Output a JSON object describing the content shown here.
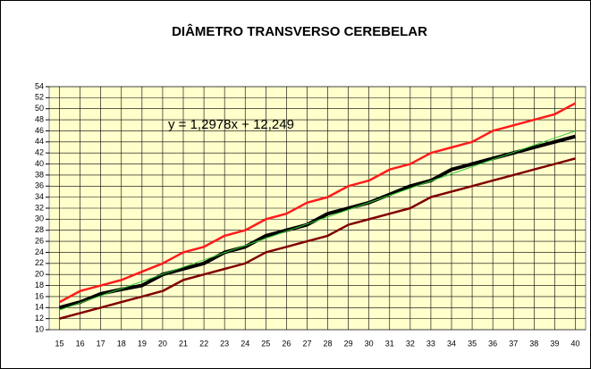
{
  "chart_data": {
    "type": "line",
    "title": "DIÂMETRO TRANSVERSO CEREBELAR",
    "categories": [
      "15",
      "16",
      "17",
      "18",
      "19",
      "20",
      "21",
      "22",
      "23",
      "24",
      "25",
      "26",
      "27",
      "28",
      "29",
      "30",
      "31",
      "32",
      "33",
      "34",
      "35",
      "36",
      "37",
      "38",
      "39",
      "40"
    ],
    "ylim": [
      10,
      54
    ],
    "yticks": [
      10,
      12,
      14,
      16,
      18,
      20,
      22,
      24,
      26,
      28,
      30,
      32,
      34,
      36,
      38,
      40,
      42,
      44,
      46,
      48,
      50,
      52,
      54
    ],
    "grid": true,
    "plot_background": "#ffffcc",
    "annotations": [
      "y = 1,2978x + 12,249"
    ],
    "series": [
      {
        "color": "#ff1a1a",
        "width": 2.5,
        "values": [
          15,
          17,
          18,
          19,
          20.5,
          22,
          24,
          25,
          27,
          28,
          30,
          31,
          33,
          34,
          36,
          37,
          39,
          40,
          42,
          43,
          44,
          46,
          47,
          48,
          49,
          51
        ]
      },
      {
        "color": "#800000",
        "width": 2.5,
        "values": [
          12,
          13,
          14,
          15,
          16,
          17,
          19,
          20,
          21,
          22,
          24,
          25,
          26,
          27,
          29,
          30,
          31,
          32,
          34,
          35,
          36,
          37,
          38,
          39,
          40,
          41
        ]
      },
      {
        "color": "#000000",
        "width": 4,
        "values": [
          14,
          15,
          16.5,
          17.3,
          18,
          20,
          21,
          22,
          24,
          25,
          27,
          28,
          29,
          31,
          32,
          33,
          34.5,
          36,
          37,
          39,
          40,
          41,
          42,
          43,
          44,
          45
        ]
      },
      {
        "color": "#33cc33",
        "width": 1,
        "values": [
          13.55,
          14.84,
          16.14,
          17.44,
          18.74,
          20.04,
          21.33,
          22.63,
          23.93,
          25.23,
          26.52,
          27.82,
          29.12,
          30.42,
          31.72,
          33.01,
          34.31,
          35.61,
          36.91,
          38.21,
          39.5,
          40.8,
          42.1,
          43.4,
          44.69,
          45.99
        ]
      }
    ]
  }
}
